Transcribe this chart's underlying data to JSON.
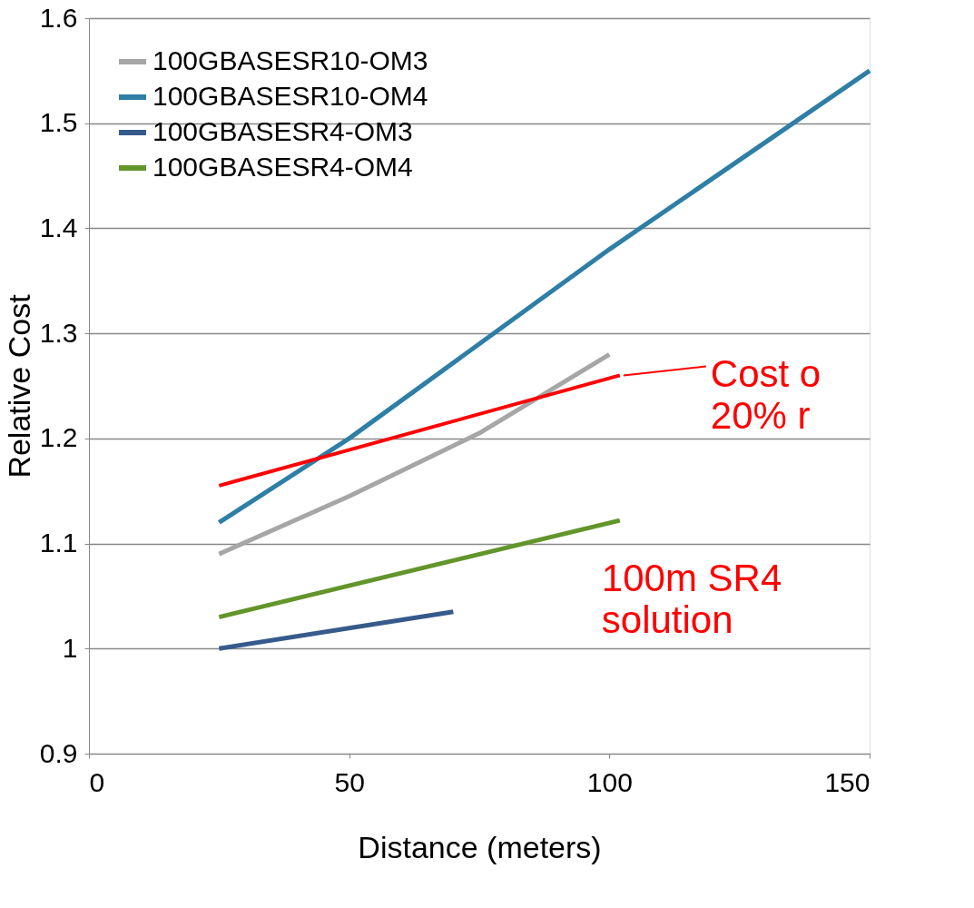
{
  "chart_data": {
    "type": "line",
    "xlabel": "Distance (meters)",
    "ylabel": "Relative Cost",
    "xlim": [
      0,
      150
    ],
    "xticks": [
      0,
      50,
      100,
      150
    ],
    "ylim": [
      0.9,
      1.6
    ],
    "yticks": [
      0.9,
      1,
      1.1,
      1.2,
      1.3,
      1.4,
      1.5,
      1.6
    ],
    "grid": "y",
    "legend": "top left",
    "marker": "none",
    "line_style": "solid",
    "series": [
      {
        "name": "100GBASESR10-OM3",
        "color": "#a6a6a6",
        "x": [
          25,
          50,
          75,
          100
        ],
        "values": [
          1.09,
          1.145,
          1.205,
          1.28
        ]
      },
      {
        "name": "100GBASESR10-OM4",
        "color": "#2e7ea6",
        "x": [
          25,
          50,
          75,
          100,
          150
        ],
        "values": [
          1.12,
          1.2,
          1.29,
          1.38,
          1.55
        ]
      },
      {
        "name": "100GBASESR4-OM3",
        "color": "#365a8c",
        "x": [
          25,
          70
        ],
        "values": [
          1.0,
          1.035
        ]
      },
      {
        "name": "100GBASESR4-OM4",
        "color": "#62952a",
        "x": [
          25,
          102
        ],
        "values": [
          1.03,
          1.122
        ]
      },
      {
        "color": "#ff0000",
        "x": [
          25,
          102
        ],
        "values": [
          1.155,
          1.26
        ]
      }
    ],
    "annotations": [
      {
        "text": "Cost o\n20% r",
        "x": 102,
        "y": 1.26
      },
      {
        "text": "100m SR4\nsolution",
        "x": 102,
        "y": 1.122
      }
    ]
  }
}
